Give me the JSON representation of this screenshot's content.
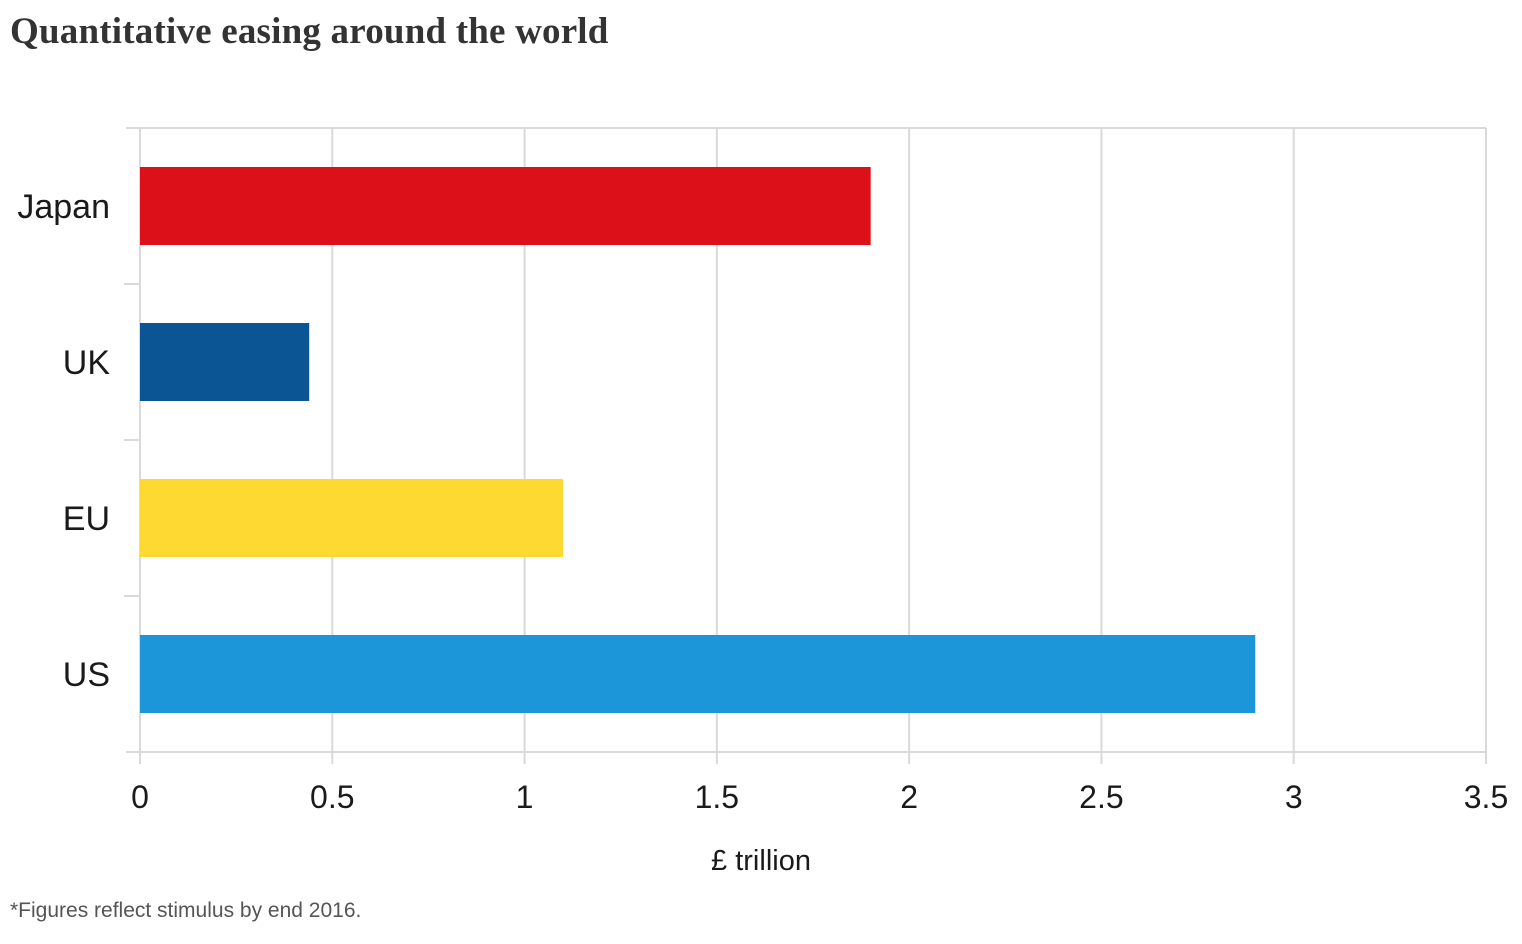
{
  "chart_data": {
    "type": "bar",
    "orientation": "horizontal",
    "title": "Quantitative easing around the world",
    "categories": [
      "Japan",
      "UK",
      "EU",
      "US"
    ],
    "values": [
      1.9,
      0.44,
      1.1,
      2.9
    ],
    "colors": [
      "#dc1019",
      "#0b5595",
      "#fed931",
      "#1c96d8"
    ],
    "xlabel": "£ trillion",
    "ylabel": "",
    "xlim": [
      0,
      3.5
    ],
    "xticks": [
      0,
      0.5,
      1,
      1.5,
      2,
      2.5,
      3,
      3.5
    ],
    "xtick_labels": [
      "0",
      "0.5",
      "1",
      "1.5",
      "2",
      "2.5",
      "3",
      "3.5"
    ],
    "grid": true,
    "legend": "none",
    "footnote": "*Figures reflect stimulus by end 2016."
  },
  "theme": {
    "grid_color": "#d9d9d9",
    "text_color": "#1a1a1a"
  }
}
